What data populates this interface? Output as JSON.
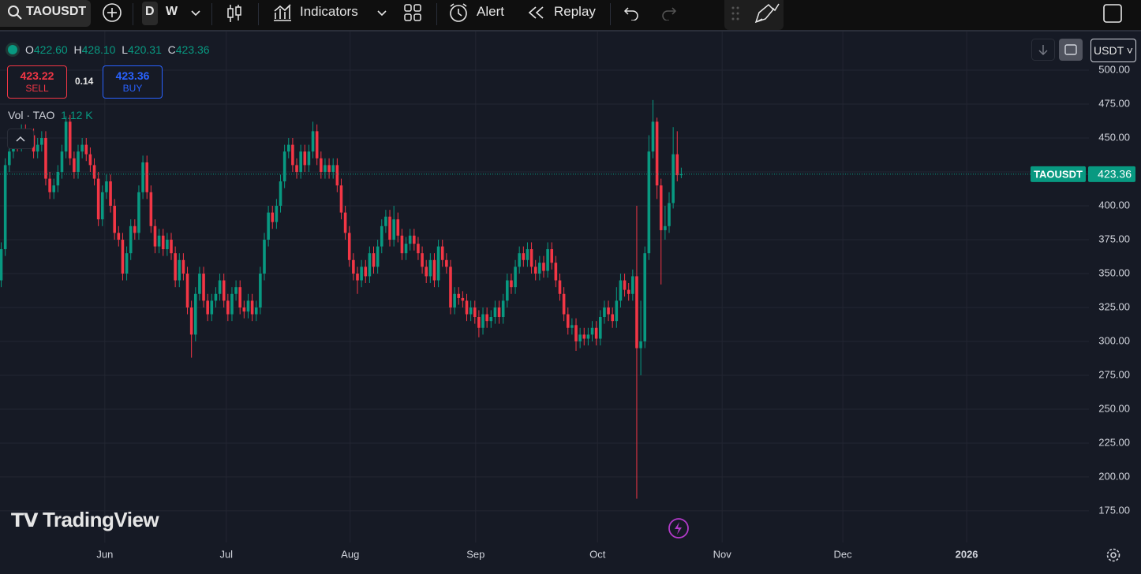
{
  "toolbar": {
    "symbol": "TAOUSDT",
    "intervals": [
      "D",
      "W"
    ],
    "indicators": "Indicators",
    "alert": "Alert",
    "replay": "Replay"
  },
  "legend": {
    "open_label": "O",
    "open": "422.60",
    "high_label": "H",
    "high": "428.10",
    "low_label": "L",
    "low": "420.31",
    "close_label": "C",
    "close": "423.36"
  },
  "trade": {
    "sell_price": "423.22",
    "sell": "SELL",
    "spread": "0.14",
    "buy_price": "423.36",
    "buy": "BUY"
  },
  "volume": {
    "label": "Vol · TAO",
    "value": "1.12 K"
  },
  "currency": "USDT",
  "price_tag": {
    "symbol": "TAOUSDT",
    "price": "423.36"
  },
  "logo": "TradingView",
  "chart_data": {
    "type": "candlestick",
    "up_color": "#089981",
    "down_color": "#f23645",
    "grid": true,
    "open": [
      345,
      368,
      430,
      440,
      450,
      445,
      455,
      448,
      452,
      440,
      445,
      450,
      420,
      410,
      415,
      425,
      440,
      462,
      435,
      425,
      440,
      445,
      438,
      430,
      420,
      390,
      410,
      418,
      400,
      380,
      375,
      350,
      365,
      385,
      380,
      410,
      432,
      410,
      385,
      370,
      378,
      368,
      375,
      365,
      345,
      360,
      350,
      325,
      305,
      335,
      350,
      330,
      320,
      330,
      335,
      345,
      330,
      320,
      335,
      340,
      325,
      322,
      330,
      320,
      325,
      350,
      375,
      395,
      388,
      400,
      418,
      440,
      445,
      430,
      425,
      440,
      430,
      440,
      455,
      435,
      425,
      430,
      425,
      430,
      415,
      395,
      380,
      360,
      350,
      345,
      355,
      348,
      365,
      355,
      370,
      385,
      392,
      375,
      390,
      378,
      365,
      372,
      378,
      372,
      365,
      355,
      348,
      360,
      345,
      370,
      360,
      355,
      325,
      335,
      332,
      330,
      320,
      325,
      318,
      310,
      320,
      315,
      318,
      325,
      318,
      330,
      345,
      340,
      355,
      365,
      360,
      368,
      355,
      350,
      358,
      352,
      368,
      358,
      345,
      335,
      320,
      310,
      312,
      300,
      305,
      302,
      305,
      310,
      302,
      318,
      325,
      320,
      315,
      330,
      345,
      338,
      335,
      348,
      295,
      300,
      365,
      440,
      462,
      415,
      382,
      385,
      402,
      438,
      422.6
    ],
    "high": [
      373,
      435,
      445,
      455,
      455,
      460,
      460,
      457,
      457,
      450,
      455,
      455,
      425,
      420,
      430,
      445,
      466,
      467,
      440,
      445,
      450,
      450,
      443,
      435,
      425,
      415,
      423,
      423,
      405,
      385,
      380,
      370,
      390,
      390,
      415,
      437,
      437,
      415,
      390,
      383,
      383,
      380,
      380,
      370,
      365,
      365,
      355,
      330,
      340,
      355,
      355,
      335,
      335,
      340,
      350,
      350,
      335,
      340,
      345,
      345,
      330,
      335,
      335,
      330,
      355,
      380,
      400,
      400,
      405,
      423,
      445,
      450,
      450,
      435,
      445,
      445,
      445,
      462,
      460,
      440,
      435,
      435,
      435,
      435,
      420,
      400,
      385,
      365,
      355,
      360,
      360,
      370,
      370,
      375,
      390,
      397,
      397,
      400,
      395,
      383,
      377,
      383,
      383,
      377,
      370,
      360,
      365,
      365,
      375,
      375,
      365,
      360,
      340,
      340,
      337,
      335,
      330,
      330,
      323,
      325,
      325,
      323,
      330,
      330,
      335,
      350,
      350,
      360,
      370,
      370,
      373,
      373,
      360,
      363,
      363,
      373,
      373,
      363,
      350,
      340,
      325,
      317,
      317,
      310,
      310,
      310,
      315,
      315,
      323,
      330,
      330,
      325,
      340,
      350,
      350,
      343,
      353,
      400,
      330,
      370,
      452,
      478,
      465,
      420,
      400,
      410,
      458,
      455,
      428.1
    ],
    "low": [
      340,
      363,
      425,
      435,
      440,
      440,
      443,
      443,
      435,
      435,
      440,
      415,
      405,
      405,
      410,
      420,
      435,
      430,
      420,
      420,
      435,
      433,
      425,
      415,
      385,
      385,
      405,
      395,
      375,
      370,
      345,
      345,
      360,
      375,
      375,
      405,
      405,
      380,
      365,
      365,
      363,
      363,
      360,
      340,
      340,
      345,
      320,
      288,
      300,
      330,
      325,
      315,
      315,
      325,
      330,
      325,
      315,
      315,
      330,
      320,
      317,
      317,
      315,
      315,
      320,
      345,
      370,
      383,
      383,
      395,
      413,
      435,
      425,
      420,
      420,
      425,
      425,
      435,
      430,
      420,
      420,
      420,
      420,
      410,
      390,
      375,
      355,
      345,
      335,
      340,
      343,
      343,
      350,
      350,
      365,
      380,
      370,
      370,
      373,
      360,
      360,
      367,
      367,
      360,
      350,
      343,
      343,
      340,
      340,
      355,
      350,
      320,
      320,
      327,
      325,
      315,
      315,
      313,
      303,
      305,
      310,
      310,
      313,
      313,
      313,
      325,
      335,
      335,
      350,
      355,
      355,
      350,
      345,
      345,
      347,
      347,
      353,
      340,
      330,
      315,
      305,
      305,
      293,
      295,
      297,
      297,
      300,
      297,
      297,
      313,
      315,
      310,
      310,
      325,
      333,
      330,
      330,
      184,
      275,
      295,
      360,
      435,
      405,
      342,
      375,
      380,
      398,
      418,
      420.31
    ],
    "close": [
      368,
      430,
      440,
      450,
      445,
      455,
      448,
      452,
      440,
      445,
      450,
      420,
      410,
      415,
      425,
      440,
      462,
      435,
      425,
      440,
      445,
      438,
      430,
      420,
      390,
      410,
      418,
      400,
      380,
      375,
      350,
      365,
      385,
      380,
      410,
      432,
      410,
      385,
      370,
      378,
      368,
      375,
      365,
      345,
      360,
      350,
      325,
      305,
      335,
      350,
      330,
      320,
      330,
      335,
      345,
      330,
      320,
      335,
      340,
      325,
      322,
      330,
      320,
      325,
      350,
      375,
      395,
      388,
      400,
      418,
      440,
      445,
      430,
      425,
      440,
      430,
      440,
      455,
      435,
      425,
      430,
      425,
      430,
      415,
      395,
      380,
      360,
      350,
      345,
      355,
      348,
      365,
      355,
      370,
      385,
      392,
      375,
      390,
      378,
      365,
      372,
      378,
      372,
      365,
      355,
      348,
      360,
      345,
      370,
      360,
      355,
      325,
      335,
      332,
      330,
      320,
      325,
      318,
      310,
      320,
      315,
      318,
      325,
      318,
      330,
      345,
      340,
      355,
      365,
      360,
      368,
      355,
      350,
      358,
      352,
      368,
      358,
      345,
      335,
      320,
      310,
      312,
      300,
      305,
      302,
      305,
      310,
      302,
      318,
      325,
      320,
      315,
      330,
      345,
      338,
      335,
      348,
      295,
      300,
      365,
      440,
      462,
      415,
      382,
      385,
      402,
      438,
      422.6,
      423.36
    ],
    "ylim": [
      151.7,
      528.5
    ],
    "yticks": [
      {
        "value": 175,
        "label": "175.00"
      },
      {
        "value": 200,
        "label": "200.00"
      },
      {
        "value": 225,
        "label": "225.00"
      },
      {
        "value": 250,
        "label": "250.00"
      },
      {
        "value": 275,
        "label": "275.00"
      },
      {
        "value": 300,
        "label": "300.00"
      },
      {
        "value": 325,
        "label": "325.00"
      },
      {
        "value": 350,
        "label": "350.00"
      },
      {
        "value": 375,
        "label": "375.00"
      },
      {
        "value": 400,
        "label": "400.00"
      },
      {
        "value": 425,
        "label": "425.00"
      },
      {
        "value": 450,
        "label": "450.00"
      },
      {
        "value": 475,
        "label": "475.00"
      },
      {
        "value": 500,
        "label": "500.00"
      }
    ],
    "xlim": [
      -0.3,
      268.7
    ],
    "xticks": [
      {
        "value": 25.6,
        "label": "Jun"
      },
      {
        "value": 55.6,
        "label": "Jul"
      },
      {
        "value": 86.2,
        "label": "Aug"
      },
      {
        "value": 117.2,
        "label": "Sep"
      },
      {
        "value": 147.3,
        "label": "Oct"
      },
      {
        "value": 178.1,
        "label": "Nov"
      },
      {
        "value": 207.9,
        "label": "Dec"
      },
      {
        "value": 238.5,
        "label": "2026"
      }
    ]
  }
}
